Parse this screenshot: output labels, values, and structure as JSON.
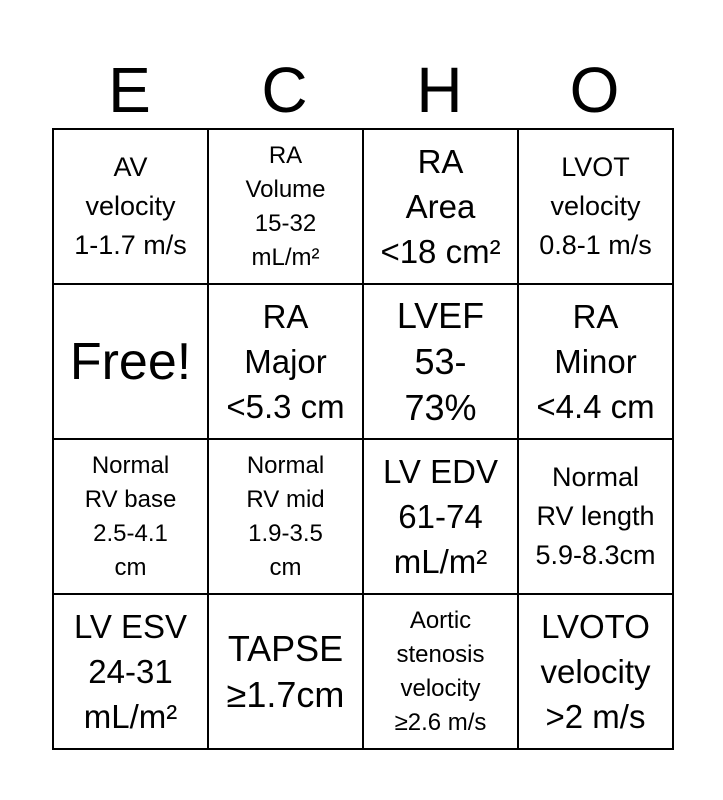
{
  "header": {
    "letters": [
      "E",
      "C",
      "H",
      "O"
    ]
  },
  "cells": [
    [
      "AV\nvelocity\n1-1.7 m/s",
      "RA\nVolume\n15-32\nmL/m²",
      "RA\nArea\n<18 cm²",
      "LVOT\nvelocity\n0.8-1 m/s"
    ],
    [
      "Free!",
      "RA\nMajor\n<5.3 cm",
      "LVEF\n53-\n73%",
      "RA\nMinor\n<4.4 cm"
    ],
    [
      "Normal\nRV base\n2.5-4.1\ncm",
      "Normal\nRV mid\n1.9-3.5\ncm",
      "LV EDV\n61-74\nmL/m²",
      "Normal\nRV length\n5.9-8.3cm"
    ],
    [
      "LV ESV\n24-31\nmL/m²",
      "TAPSE\n≥1.7cm",
      "Aortic\nstenosis\nvelocity\n≥2.6 m/s",
      "LVOTO\nvelocity\n>2 m/s"
    ]
  ]
}
